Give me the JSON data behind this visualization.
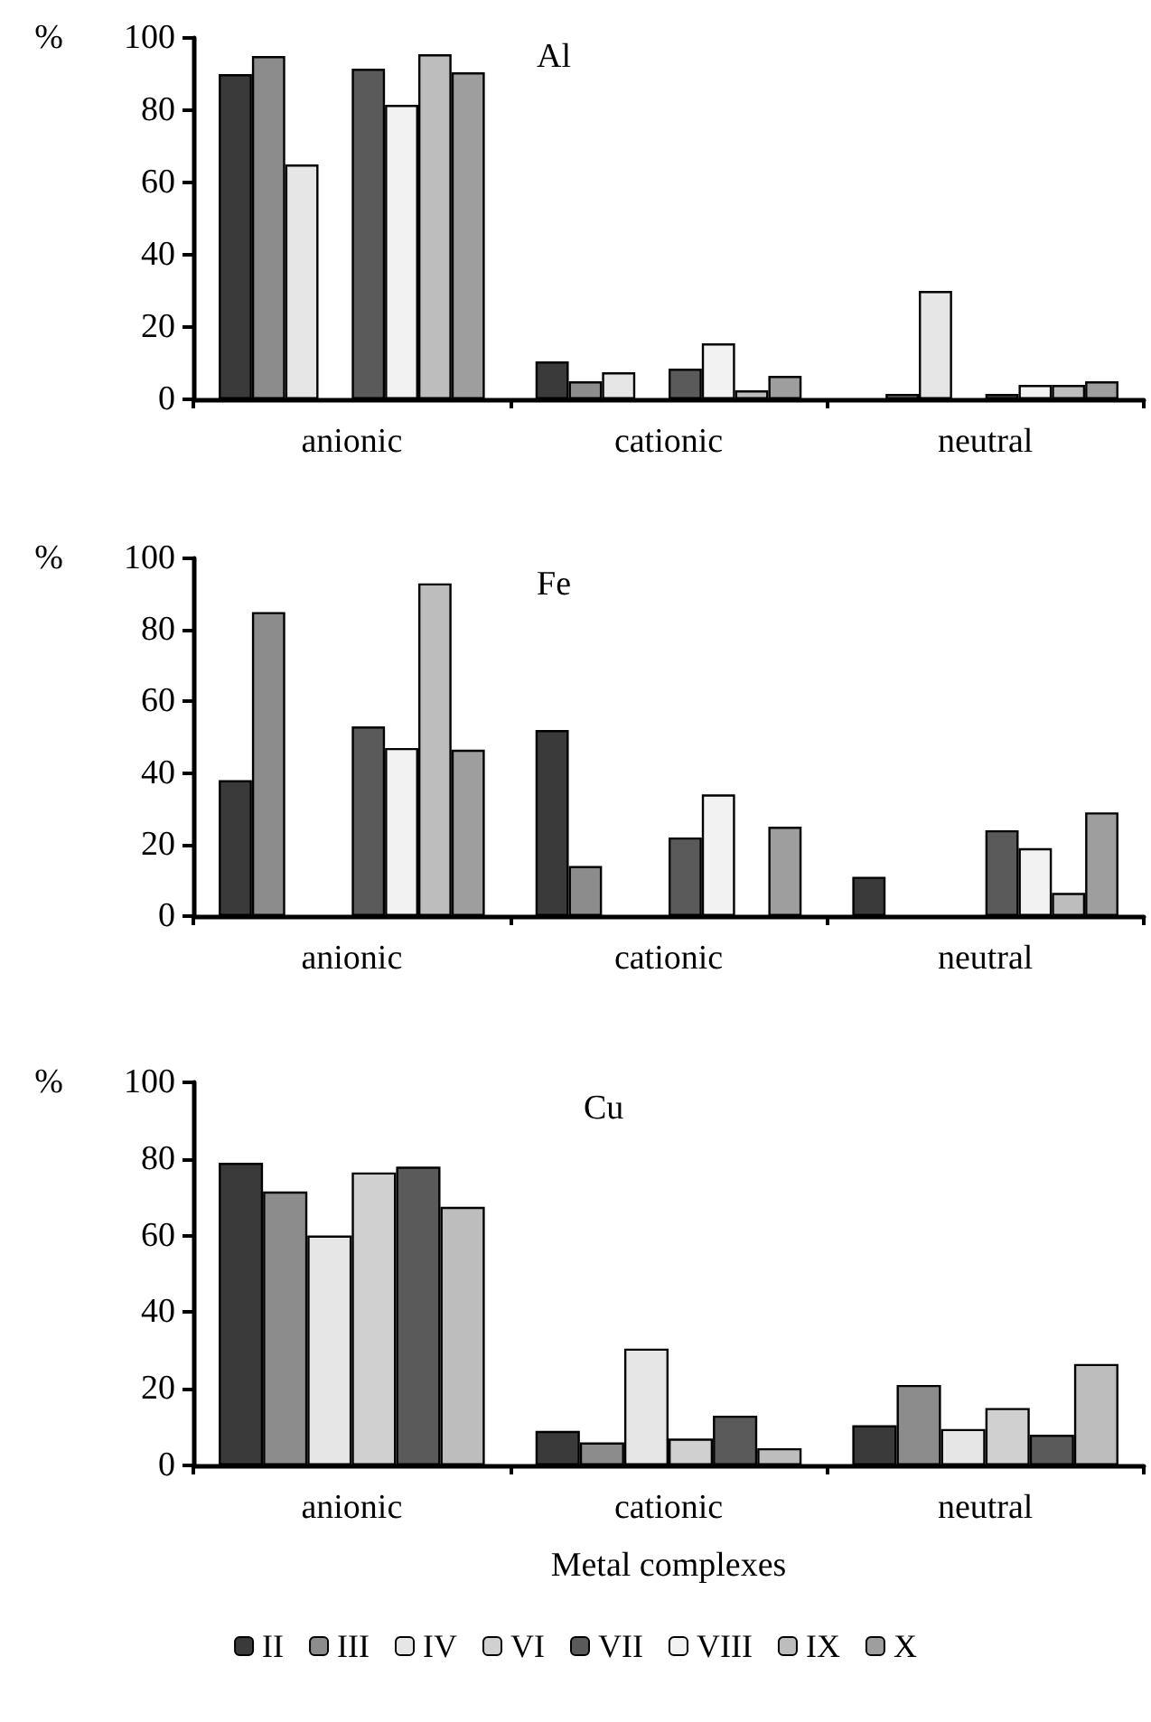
{
  "chart_data": [
    {
      "type": "bar",
      "title": "Al",
      "ylabel": "%",
      "categories": [
        "anionic",
        "cationic",
        "neutral"
      ],
      "ylim": [
        0,
        100
      ],
      "yticks": [
        0,
        20,
        40,
        60,
        80,
        100
      ],
      "legend": "bottom",
      "series": [
        {
          "name": "II",
          "color": "#3a3a3a",
          "values": [
            90,
            10.5,
            null
          ]
        },
        {
          "name": "III",
          "color": "#8c8c8c",
          "values": [
            95,
            5,
            1.5
          ]
        },
        {
          "name": "IV",
          "color": "#e6e6e6",
          "values": [
            65,
            7.5,
            30
          ]
        },
        {
          "name": "VI",
          "color": "#d0d0d0",
          "values": [
            null,
            null,
            null
          ]
        },
        {
          "name": "VII",
          "color": "#5a5a5a",
          "values": [
            91.5,
            8.5,
            1.5
          ]
        },
        {
          "name": "VIII",
          "color": "#f2f2f2",
          "values": [
            81.5,
            15.5,
            4
          ]
        },
        {
          "name": "IX",
          "color": "#bdbdbd",
          "values": [
            95.5,
            2.5,
            4
          ]
        },
        {
          "name": "X",
          "color": "#9e9e9e",
          "values": [
            90.5,
            6.5,
            5
          ]
        }
      ]
    },
    {
      "type": "bar",
      "title": "Fe",
      "ylabel": "%",
      "categories": [
        "anionic",
        "cationic",
        "neutral"
      ],
      "ylim": [
        0,
        100
      ],
      "yticks": [
        0,
        20,
        40,
        60,
        80,
        100
      ],
      "series": [
        {
          "color": "#3a3a3a",
          "values": [
            38,
            52,
            11
          ]
        },
        {
          "color": "#8c8c8c",
          "values": [
            85,
            14,
            null
          ]
        },
        {
          "color": "#e6e6e6",
          "values": [
            null,
            null,
            null
          ]
        },
        {
          "color": "#d0d0d0",
          "values": [
            null,
            null,
            null
          ]
        },
        {
          "color": "#5a5a5a",
          "values": [
            53,
            22,
            24
          ]
        },
        {
          "color": "#f2f2f2",
          "values": [
            47,
            34,
            19
          ]
        },
        {
          "color": "#bdbdbd",
          "values": [
            93,
            null,
            6.5
          ]
        },
        {
          "color": "#9e9e9e",
          "values": [
            46.5,
            25,
            29
          ]
        }
      ]
    },
    {
      "type": "bar",
      "title": "Cu",
      "ylabel": "%",
      "xlabel": "Metal complexes",
      "categories": [
        "anionic",
        "cationic",
        "neutral"
      ],
      "ylim": [
        0,
        100
      ],
      "yticks": [
        0,
        20,
        40,
        60,
        80,
        100
      ],
      "series": [
        {
          "color": "#3a3a3a",
          "values": [
            79,
            9,
            10.5
          ]
        },
        {
          "color": "#8c8c8c",
          "values": [
            71.5,
            6,
            21
          ]
        },
        {
          "color": "#e6e6e6",
          "values": [
            60,
            30.5,
            9.5
          ]
        },
        {
          "color": "#d0d0d0",
          "values": [
            76.5,
            7,
            15
          ]
        },
        {
          "color": "#5a5a5a",
          "values": [
            78,
            13,
            8
          ]
        },
        {
          "color": "#bdbdbd",
          "values": [
            67.5,
            4.5,
            26.5
          ]
        }
      ]
    }
  ]
}
